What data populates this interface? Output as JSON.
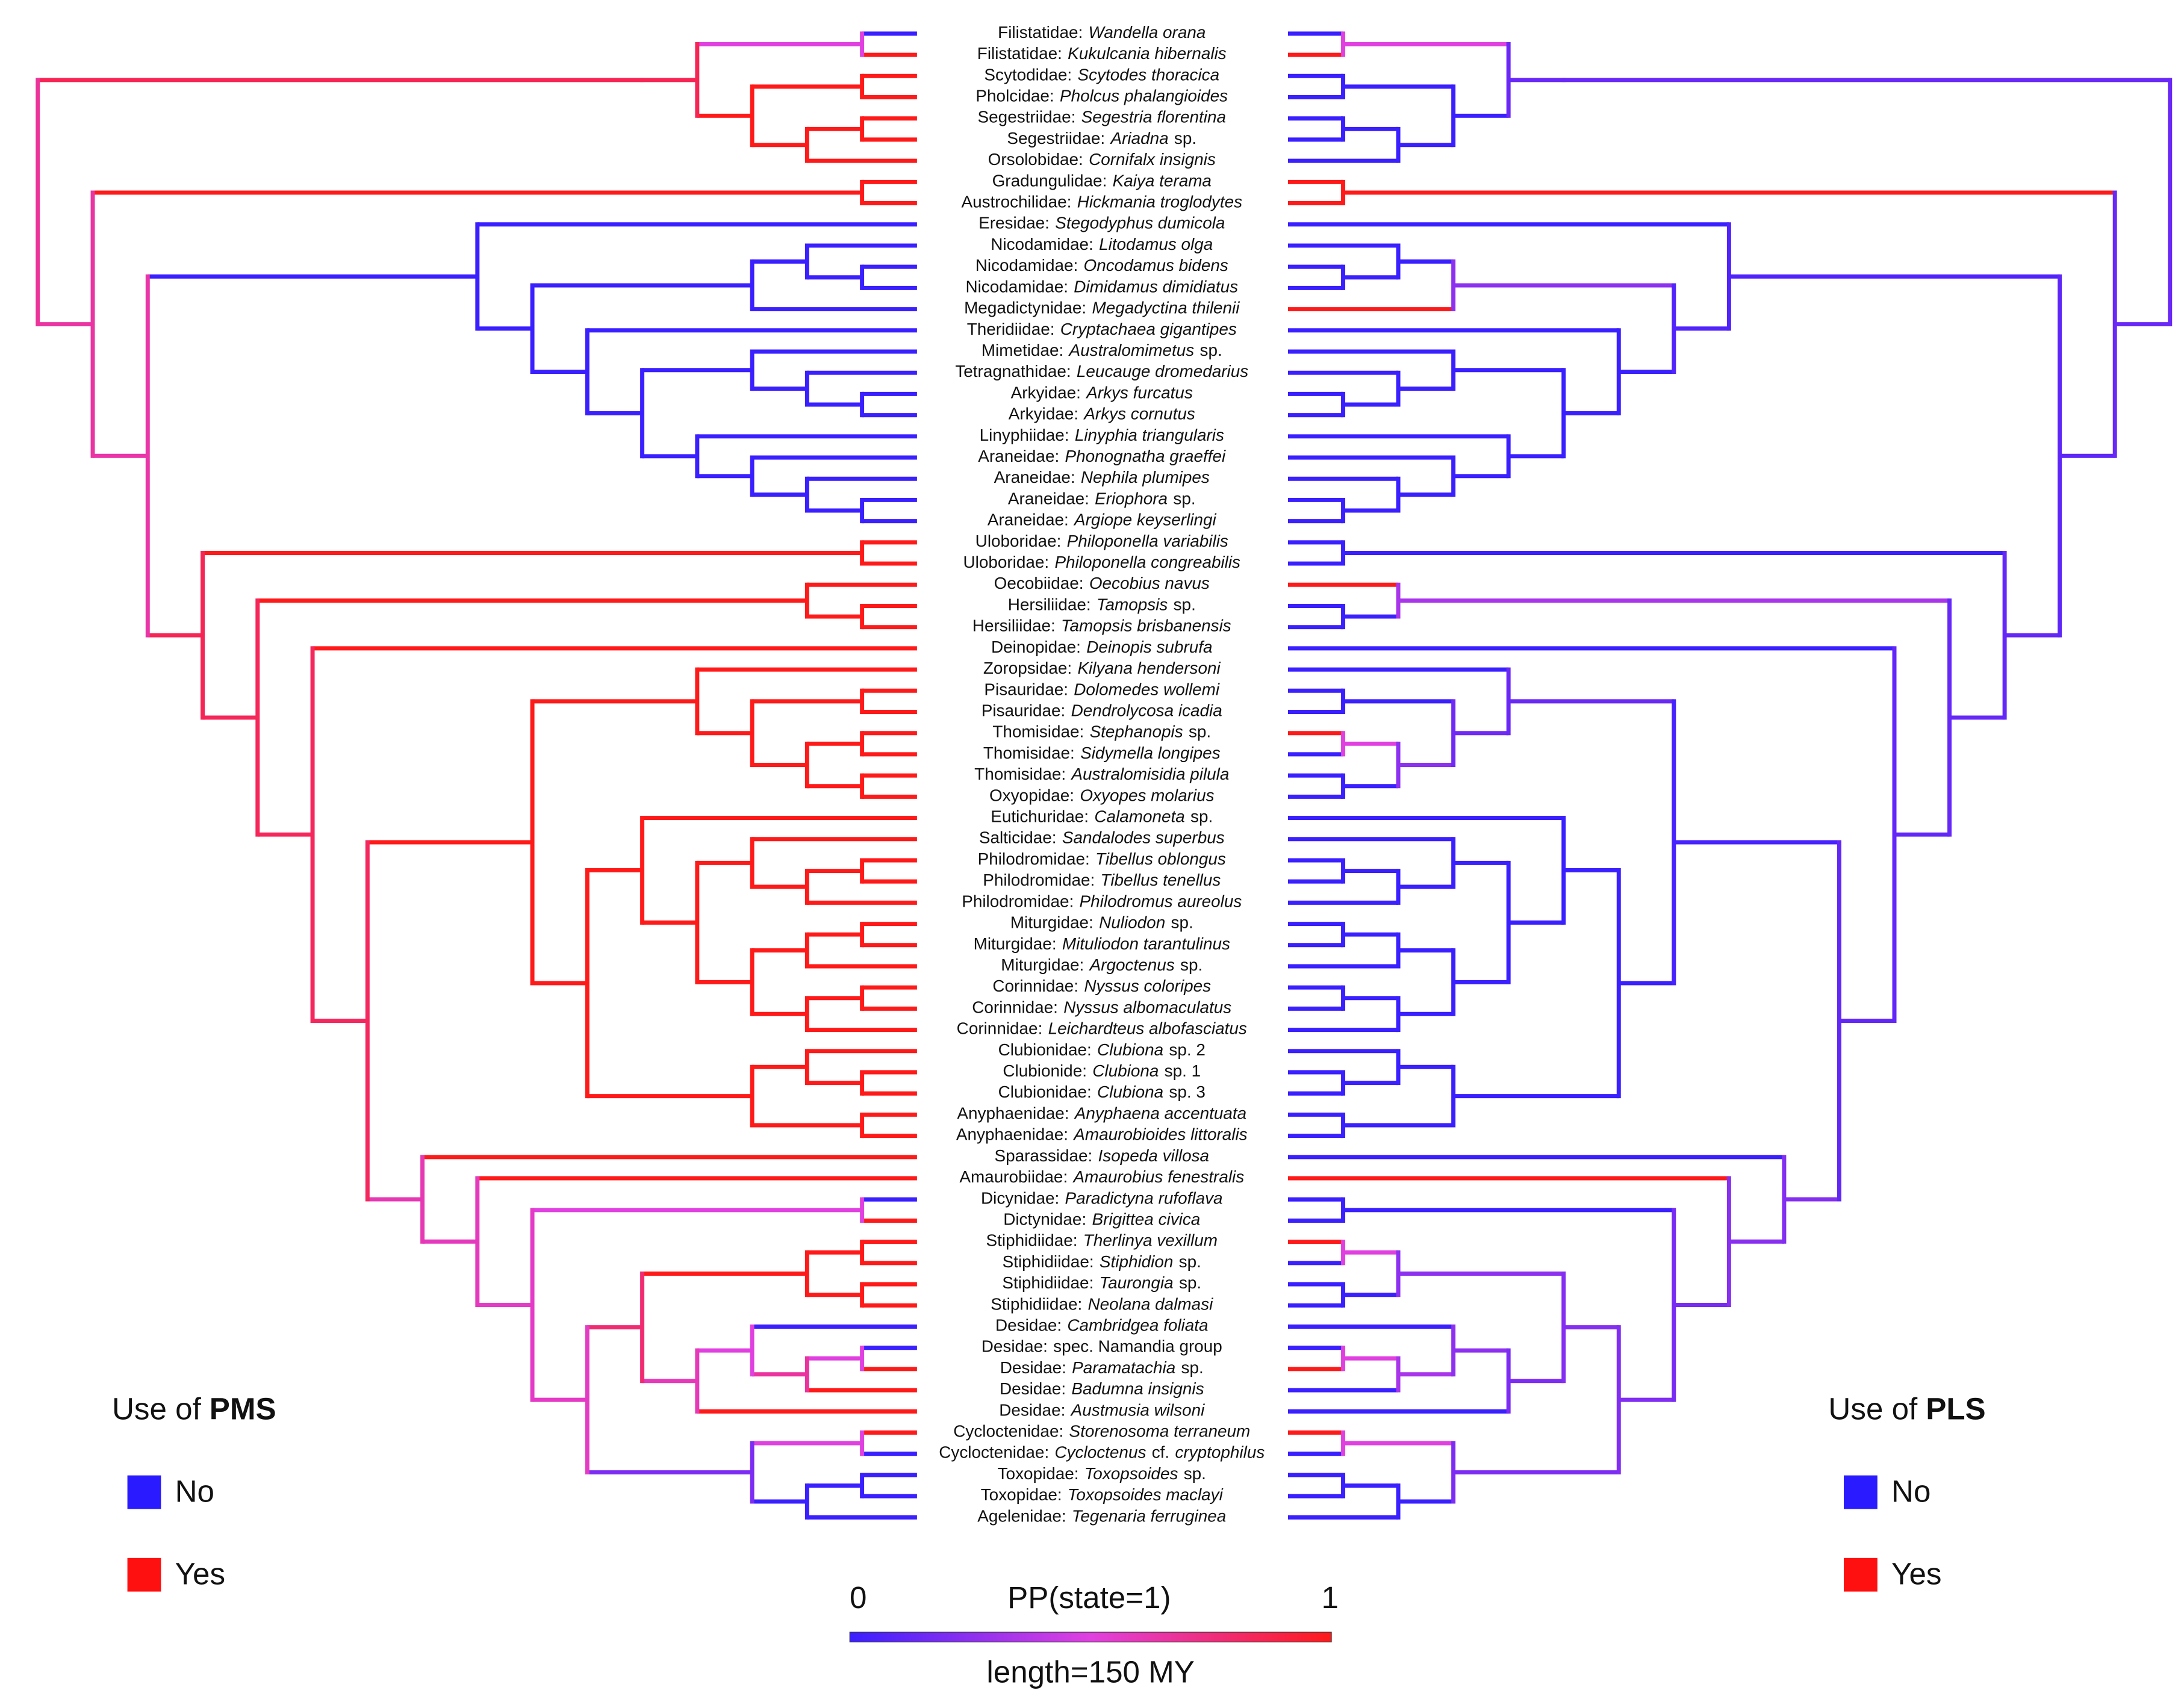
{
  "taxa": [
    {
      "family": "Filistatidae:",
      "name": [
        [
          "Wandella orana",
          true
        ]
      ]
    },
    {
      "family": "Filistatidae:",
      "name": [
        [
          "Kukulcania hibernalis",
          true
        ]
      ]
    },
    {
      "family": "Scytodidae:",
      "name": [
        [
          "Scytodes thoracica",
          true
        ]
      ]
    },
    {
      "family": "Pholcidae:",
      "name": [
        [
          "Pholcus phalangioides",
          true
        ]
      ]
    },
    {
      "family": "Segestriidae:",
      "name": [
        [
          "Segestria florentina",
          true
        ]
      ]
    },
    {
      "family": "Segestriidae:",
      "name": [
        [
          "Ariadna",
          true
        ],
        [
          "sp.",
          false
        ]
      ]
    },
    {
      "family": "Orsolobidae:",
      "name": [
        [
          "Cornifalx insignis",
          true
        ]
      ]
    },
    {
      "family": "Gradungulidae:",
      "name": [
        [
          "Kaiya terama",
          true
        ]
      ]
    },
    {
      "family": "Austrochilidae:",
      "name": [
        [
          "Hickmania troglodytes",
          true
        ]
      ]
    },
    {
      "family": "Eresidae:",
      "name": [
        [
          "Stegodyphus dumicola",
          true
        ]
      ]
    },
    {
      "family": "Nicodamidae:",
      "name": [
        [
          "Litodamus olga",
          true
        ]
      ]
    },
    {
      "family": "Nicodamidae:",
      "name": [
        [
          "Oncodamus bidens",
          true
        ]
      ]
    },
    {
      "family": "Nicodamidae:",
      "name": [
        [
          "Dimidamus dimidiatus",
          true
        ]
      ]
    },
    {
      "family": "Megadictynidae:",
      "name": [
        [
          "Megadyctina thilenii",
          true
        ]
      ]
    },
    {
      "family": "Theridiidae:",
      "name": [
        [
          "Cryptachaea gigantipes",
          true
        ]
      ]
    },
    {
      "family": "Mimetidae:",
      "name": [
        [
          "Australomimetus",
          true
        ],
        [
          "sp.",
          false
        ]
      ]
    },
    {
      "family": "Tetragnathidae:",
      "name": [
        [
          "Leucauge dromedarius",
          true
        ]
      ]
    },
    {
      "family": "Arkyidae:",
      "name": [
        [
          "Arkys furcatus",
          true
        ]
      ]
    },
    {
      "family": "Arkyidae:",
      "name": [
        [
          "Arkys cornutus",
          true
        ]
      ]
    },
    {
      "family": "Linyphiidae:",
      "name": [
        [
          "Linyphia triangularis",
          true
        ]
      ]
    },
    {
      "family": "Araneidae:",
      "name": [
        [
          "Phonognatha graeffei",
          true
        ]
      ]
    },
    {
      "family": "Araneidae:",
      "name": [
        [
          "Nephila plumipes",
          true
        ]
      ]
    },
    {
      "family": "Araneidae:",
      "name": [
        [
          "Eriophora",
          true
        ],
        [
          "sp.",
          false
        ]
      ]
    },
    {
      "family": "Araneidae:",
      "name": [
        [
          "Argiope keyserlingi",
          true
        ]
      ]
    },
    {
      "family": "Uloboridae:",
      "name": [
        [
          "Philoponella variabilis",
          true
        ]
      ]
    },
    {
      "family": "Uloboridae:",
      "name": [
        [
          "Philoponella congreabilis",
          true
        ]
      ]
    },
    {
      "family": "Oecobiidae:",
      "name": [
        [
          "Oecobius navus",
          true
        ]
      ]
    },
    {
      "family": "Hersiliidae:",
      "name": [
        [
          "Tamopsis",
          true
        ],
        [
          "sp.",
          false
        ]
      ]
    },
    {
      "family": "Hersiliidae:",
      "name": [
        [
          "Tamopsis brisbanensis",
          true
        ]
      ]
    },
    {
      "family": "Deinopidae:",
      "name": [
        [
          "Deinopis subrufa",
          true
        ]
      ]
    },
    {
      "family": "Zoropsidae:",
      "name": [
        [
          "Kilyana hendersoni",
          true
        ]
      ]
    },
    {
      "family": "Pisauridae:",
      "name": [
        [
          "Dolomedes wollemi",
          true
        ]
      ]
    },
    {
      "family": "Pisauridae:",
      "name": [
        [
          "Dendrolycosa icadia",
          true
        ]
      ]
    },
    {
      "family": "Thomisidae:",
      "name": [
        [
          "Stephanopis",
          true
        ],
        [
          "sp.",
          false
        ]
      ]
    },
    {
      "family": "Thomisidae:",
      "name": [
        [
          "Sidymella longipes",
          true
        ]
      ]
    },
    {
      "family": "Thomisidae:",
      "name": [
        [
          "Australomisidia pilula",
          true
        ]
      ]
    },
    {
      "family": "Oxyopidae:",
      "name": [
        [
          "Oxyopes molarius",
          true
        ]
      ]
    },
    {
      "family": "Eutichuridae:",
      "name": [
        [
          "Calamoneta",
          true
        ],
        [
          "sp.",
          false
        ]
      ]
    },
    {
      "family": "Salticidae:",
      "name": [
        [
          "Sandalodes superbus",
          true
        ]
      ]
    },
    {
      "family": "Philodromidae:",
      "name": [
        [
          "Tibellus oblongus",
          true
        ]
      ]
    },
    {
      "family": "Philodromidae:",
      "name": [
        [
          "Tibellus tenellus",
          true
        ]
      ]
    },
    {
      "family": "Philodromidae:",
      "name": [
        [
          "Philodromus aureolus",
          true
        ]
      ]
    },
    {
      "family": "Miturgidae:",
      "name": [
        [
          "Nuliodon",
          true
        ],
        [
          "sp.",
          false
        ]
      ]
    },
    {
      "family": "Miturgidae:",
      "name": [
        [
          "Mituliodon tarantulinus",
          true
        ]
      ]
    },
    {
      "family": "Miturgidae:",
      "name": [
        [
          "Argoctenus",
          true
        ],
        [
          "sp.",
          false
        ]
      ]
    },
    {
      "family": "Corinnidae:",
      "name": [
        [
          "Nyssus coloripes",
          true
        ]
      ]
    },
    {
      "family": "Corinnidae:",
      "name": [
        [
          "Nyssus albomaculatus",
          true
        ]
      ]
    },
    {
      "family": "Corinnidae:",
      "name": [
        [
          "Leichardteus albofasciatus",
          true
        ]
      ]
    },
    {
      "family": "Clubionidae:",
      "name": [
        [
          "Clubiona",
          true
        ],
        [
          "sp. 2",
          false
        ]
      ]
    },
    {
      "family": "Clubionide:",
      "name": [
        [
          "Clubiona",
          true
        ],
        [
          "sp. 1",
          false
        ]
      ]
    },
    {
      "family": "Clubionidae:",
      "name": [
        [
          "Clubiona",
          true
        ],
        [
          "sp. 3",
          false
        ]
      ]
    },
    {
      "family": "Anyphaenidae:",
      "name": [
        [
          "Anyphaena accentuata",
          true
        ]
      ]
    },
    {
      "family": "Anyphaenidae:",
      "name": [
        [
          "Amaurobioides littoralis",
          true
        ]
      ]
    },
    {
      "family": "Sparassidae:",
      "name": [
        [
          "Isopeda villosa",
          true
        ]
      ]
    },
    {
      "family": "Amaurobiidae:",
      "name": [
        [
          "Amaurobius fenestralis",
          true
        ]
      ]
    },
    {
      "family": "Dicynidae:",
      "name": [
        [
          "Paradictyna rufoflava",
          true
        ]
      ]
    },
    {
      "family": "Dictynidae:",
      "name": [
        [
          "Brigittea civica",
          true
        ]
      ]
    },
    {
      "family": "Stiphidiidae:",
      "name": [
        [
          "Therlinya vexillum",
          true
        ]
      ]
    },
    {
      "family": "Stiphidiidae:",
      "name": [
        [
          "Stiphidion",
          true
        ],
        [
          "sp.",
          false
        ]
      ]
    },
    {
      "family": "Stiphidiidae:",
      "name": [
        [
          "Taurongia",
          true
        ],
        [
          "sp.",
          false
        ]
      ]
    },
    {
      "family": "Stiphidiidae:",
      "name": [
        [
          "Neolana dalmasi",
          true
        ]
      ]
    },
    {
      "family": "Desidae:",
      "name": [
        [
          "Cambridgea foliata",
          true
        ]
      ]
    },
    {
      "family": "Desidae:",
      "name": [
        [
          "spec. Namandia group",
          false
        ]
      ]
    },
    {
      "family": "Desidae:",
      "name": [
        [
          "Paramatachia",
          true
        ],
        [
          "sp.",
          false
        ]
      ]
    },
    {
      "family": "Desidae:",
      "name": [
        [
          "Badumna insignis",
          true
        ]
      ]
    },
    {
      "family": "Desidae:",
      "name": [
        [
          "Austmusia wilsoni",
          true
        ]
      ]
    },
    {
      "family": "Cycloctenidae:",
      "name": [
        [
          "Storenosoma terraneum",
          true
        ]
      ]
    },
    {
      "family": "Cycloctenidae:",
      "name": [
        [
          "Cycloctenus",
          true
        ],
        [
          "cf.",
          false
        ],
        [
          "cryptophilus",
          true
        ]
      ]
    },
    {
      "family": "Toxopidae:",
      "name": [
        [
          "Toxopsoides",
          true
        ],
        [
          "sp.",
          false
        ]
      ]
    },
    {
      "family": "Toxopidae:",
      "name": [
        [
          "Toxopsoides maclayi",
          true
        ]
      ]
    },
    {
      "family": "Agelenidae:",
      "name": [
        [
          "Tegenaria ferruginea",
          true
        ]
      ]
    }
  ],
  "legend_left": {
    "title": "Use of",
    "trait": "PMS",
    "items": [
      "No",
      "Yes"
    ]
  },
  "legend_right": {
    "title": "Use of",
    "trait": "PLS",
    "items": [
      "No",
      "Yes"
    ]
  },
  "colorbar": {
    "min_label": "0",
    "title": "PP(state=1)",
    "max_label": "1",
    "scale_label": "length=150 MY"
  }
}
